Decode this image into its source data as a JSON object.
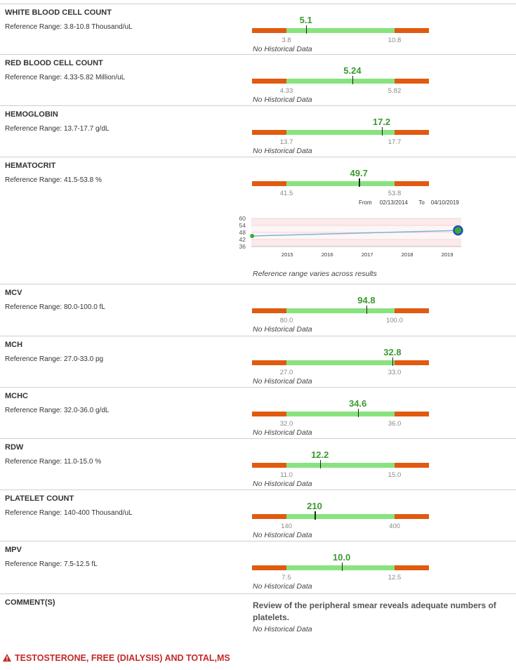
{
  "tests": [
    {
      "name": "WHITE BLOOD CELL COUNT",
      "ref": "Reference Range: 3.8-10.8 Thousand/uL",
      "value": "5.1",
      "fraction": 0.18,
      "low": "3.8",
      "high": "10.8",
      "history": "No Historical Data"
    },
    {
      "name": "RED BLOOD CELL COUNT",
      "ref": "Reference Range: 4.33-5.82 Million/uL",
      "value": "5.24",
      "fraction": 0.61,
      "low": "4.33",
      "high": "5.82",
      "history": "No Historical Data"
    },
    {
      "name": "HEMOGLOBIN",
      "ref": "Reference Range: 13.7-17.7 g/dL",
      "value": "17.2",
      "fraction": 0.88,
      "low": "13.7",
      "high": "17.7",
      "history": "No Historical Data"
    },
    {
      "name": "HEMATOCRIT",
      "ref": "Reference Range: 41.5-53.8 %",
      "value": "49.7",
      "fraction": 0.67,
      "low": "41.5",
      "high": "53.8",
      "history": "Reference range varies across results"
    },
    {
      "name": "MCV",
      "ref": "Reference Range: 80.0-100.0 fL",
      "value": "94.8",
      "fraction": 0.74,
      "low": "80.0",
      "high": "100.0",
      "history": "No Historical Data"
    },
    {
      "name": "MCH",
      "ref": "Reference Range: 27.0-33.0 pg",
      "value": "32.8",
      "fraction": 0.98,
      "low": "27.0",
      "high": "33.0",
      "history": "No Historical Data"
    },
    {
      "name": "MCHC",
      "ref": "Reference Range: 32.0-36.0 g/dL",
      "value": "34.6",
      "fraction": 0.66,
      "low": "32.0",
      "high": "36.0",
      "history": "No Historical Data"
    },
    {
      "name": "RDW",
      "ref": "Reference Range: 11.0-15.0 %",
      "value": "12.2",
      "fraction": 0.31,
      "low": "11.0",
      "high": "15.0",
      "history": "No Historical Data"
    },
    {
      "name": "PLATELET COUNT",
      "ref": "Reference Range: 140-400 Thousand/uL",
      "value": "210",
      "fraction": 0.26,
      "low": "140",
      "high": "400",
      "history": "No Historical Data"
    },
    {
      "name": "MPV",
      "ref": "Reference Range: 7.5-12.5 fL",
      "value": "10.0",
      "fraction": 0.51,
      "low": "7.5",
      "high": "12.5",
      "history": "No Historical Data"
    }
  ],
  "hematocrit_history": {
    "from_label": "From",
    "from_date": "02/13/2014",
    "to_label": "To",
    "to_date": "04/10/2019"
  },
  "chart_data": {
    "type": "line",
    "x": [
      "02/13/2014",
      "04/10/2019"
    ],
    "x_decimal": [
      2014.12,
      2019.27
    ],
    "y": [
      45,
      49.7
    ],
    "ylim": [
      36,
      60
    ],
    "yticks": [
      "60",
      "54",
      "48",
      "42",
      "36"
    ],
    "xticks": [
      "2015",
      "2016",
      "2017",
      "2018",
      "2019"
    ],
    "xlim": [
      2014.1,
      2019.35
    ],
    "reference_band": [
      41.5,
      53.8
    ],
    "colors": {
      "line": "#7fb3d5",
      "band": "#fde4e4",
      "point": "#3aaa35",
      "point_outline": "#1f4fbf"
    }
  },
  "comment": {
    "label": "COMMENT(S)",
    "text": "Review of the peripheral smear reveals adequate numbers of platelets.",
    "history": "No Historical Data"
  },
  "footer": {
    "title": "TESTOSTERONE, FREE (DIALYSIS) AND TOTAL,MS",
    "icon": "warning-icon",
    "color": "#c62828"
  }
}
